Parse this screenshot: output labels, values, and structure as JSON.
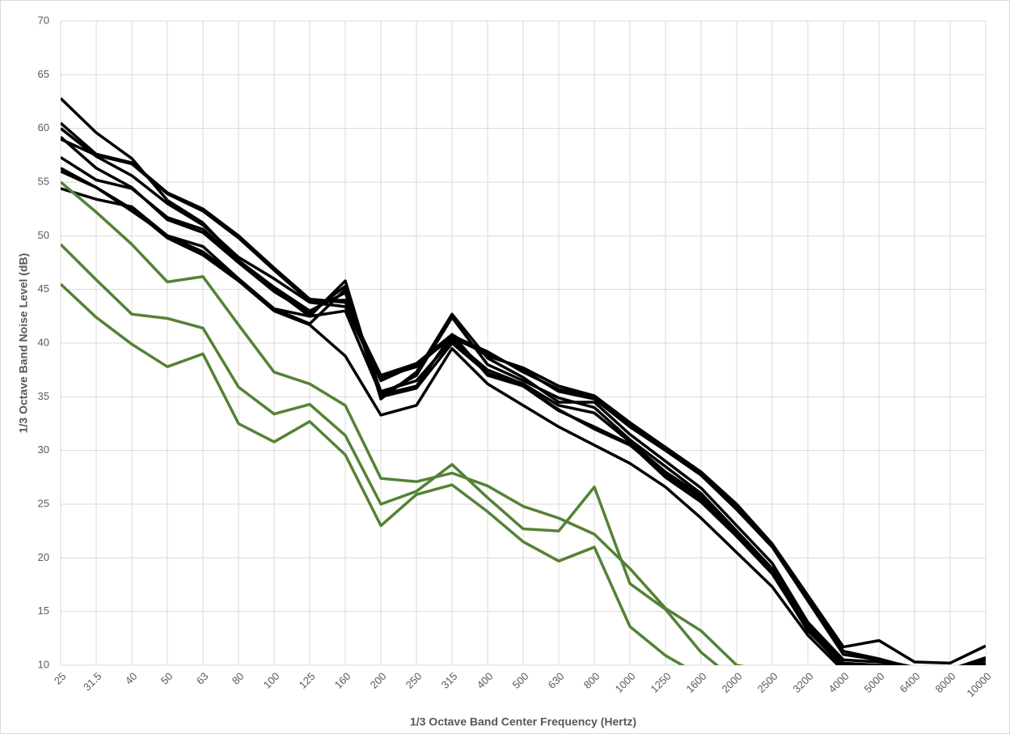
{
  "chart_data": {
    "type": "line",
    "x_label": "1/3 Octave Band Center Frequency (Hertz)",
    "y_label": "1/3 Octave Band Noise Level (dB)",
    "categories": [
      "25",
      "31.5",
      "40",
      "50",
      "63",
      "80",
      "100",
      "125",
      "160",
      "200",
      "250",
      "315",
      "400",
      "500",
      "630",
      "800",
      "1000",
      "1250",
      "1600",
      "2000",
      "2500",
      "3200",
      "4000",
      "5000",
      "6400",
      "8000",
      "10000"
    ],
    "ylim": [
      10,
      70
    ],
    "yticks": [
      10,
      15,
      20,
      25,
      30,
      35,
      40,
      45,
      50,
      55,
      60,
      65,
      70
    ],
    "grid": true,
    "series": [
      {
        "color": "#000000",
        "values": [
          62.8,
          59.6,
          57.2,
          53.3,
          51.2,
          47.7,
          45.0,
          42.5,
          45.8,
          34.8,
          37.3,
          42.7,
          38.6,
          36.8,
          34.5,
          34.5,
          31.5,
          29.0,
          26.5,
          23.0,
          19.5,
          14.0,
          10.5,
          10.3,
          9.5,
          9.5,
          10.2
        ]
      },
      {
        "color": "#000000",
        "values": [
          60.5,
          57.6,
          56.8,
          54.0,
          52.5,
          50.0,
          47.0,
          44.1,
          43.8,
          37.0,
          38.1,
          40.8,
          38.8,
          37.7,
          36.0,
          35.1,
          32.6,
          30.3,
          28.0,
          25.0,
          21.3,
          16.5,
          11.7,
          12.3,
          10.3,
          10.2,
          11.8
        ]
      },
      {
        "color": "#000000",
        "values": [
          60.0,
          57.4,
          55.6,
          53.0,
          51.0,
          48.0,
          46.0,
          43.8,
          43.4,
          36.5,
          38.0,
          40.5,
          39.0,
          37.5,
          35.5,
          34.8,
          32.2,
          30.0,
          27.7,
          24.5,
          21.0,
          16.0,
          11.0,
          10.5,
          9.8,
          9.6,
          10.7
        ]
      },
      {
        "color": "#000000",
        "values": [
          59.0,
          57.5,
          56.7,
          53.9,
          52.3,
          49.8,
          46.8,
          43.9,
          44.0,
          36.8,
          37.8,
          40.7,
          39.2,
          37.3,
          35.7,
          35.0,
          32.4,
          30.1,
          27.8,
          24.8,
          21.1,
          16.2,
          11.3,
          10.6,
          9.7,
          9.5,
          10.5
        ]
      },
      {
        "color": "#000000",
        "values": [
          59.2,
          56.3,
          54.5,
          51.5,
          50.3,
          47.5,
          44.8,
          42.8,
          45.3,
          35.2,
          37.0,
          42.4,
          38.0,
          36.5,
          34.9,
          34.0,
          31.0,
          28.5,
          26.0,
          22.5,
          19.0,
          13.8,
          10.2,
          10.0,
          9.4,
          9.3,
          10.0
        ]
      },
      {
        "color": "#000000",
        "values": [
          57.3,
          55.2,
          54.4,
          51.7,
          50.6,
          47.7,
          45.2,
          43.0,
          44.7,
          35.5,
          36.5,
          40.3,
          37.5,
          36.2,
          34.2,
          33.5,
          30.8,
          28.0,
          25.8,
          22.3,
          18.7,
          13.5,
          10.0,
          9.8,
          9.3,
          9.2,
          9.8
        ]
      },
      {
        "color": "#000000",
        "values": [
          56.3,
          54.5,
          52.3,
          50.0,
          48.5,
          46.0,
          43.2,
          41.8,
          45.0,
          35.0,
          35.8,
          40.0,
          37.2,
          36.0,
          33.7,
          32.2,
          30.6,
          27.5,
          25.2,
          22.0,
          18.5,
          13.3,
          9.8,
          9.7,
          9.2,
          9.1,
          9.6
        ]
      },
      {
        "color": "#000000",
        "values": [
          56.0,
          54.5,
          52.5,
          49.8,
          48.2,
          45.8,
          43.0,
          41.7,
          38.8,
          33.3,
          34.2,
          39.5,
          36.2,
          34.2,
          32.2,
          30.5,
          28.8,
          26.6,
          23.7,
          20.5,
          17.3,
          12.8,
          9.5,
          9.4,
          9.0,
          9.0,
          9.2
        ]
      },
      {
        "color": "#000000",
        "values": [
          54.4,
          53.4,
          52.7,
          50.0,
          49.0,
          46.0,
          43.2,
          42.5,
          43.0,
          35.2,
          36.0,
          40.8,
          37.0,
          36.0,
          33.8,
          32.0,
          30.5,
          27.8,
          25.5,
          22.0,
          18.6,
          13.2,
          10.0,
          9.8,
          9.4,
          9.3,
          9.8
        ]
      },
      {
        "color": "#548235",
        "values": [
          55.0,
          52.2,
          49.2,
          45.7,
          46.2,
          41.7,
          37.3,
          36.2,
          34.2,
          27.4,
          27.1,
          27.9,
          26.7,
          24.8,
          23.7,
          22.2,
          19.0,
          15.3,
          13.2,
          10.0,
          9.4,
          null,
          null,
          null,
          null,
          null,
          null
        ]
      },
      {
        "color": "#548235",
        "values": [
          49.2,
          45.9,
          42.7,
          42.3,
          41.4,
          35.9,
          33.4,
          34.3,
          31.4,
          25.0,
          26.2,
          28.7,
          25.6,
          22.7,
          22.5,
          26.6,
          17.6,
          15.2,
          11.2,
          8.5,
          null,
          null,
          null,
          null,
          null,
          null,
          null
        ]
      },
      {
        "color": "#548235",
        "values": [
          45.5,
          42.4,
          39.9,
          37.8,
          39.0,
          32.5,
          30.8,
          32.7,
          29.6,
          23.0,
          25.9,
          26.8,
          24.3,
          21.5,
          19.7,
          21.0,
          13.6,
          10.9,
          9.0,
          null,
          null,
          null,
          null,
          null,
          null,
          null,
          null
        ]
      }
    ]
  }
}
